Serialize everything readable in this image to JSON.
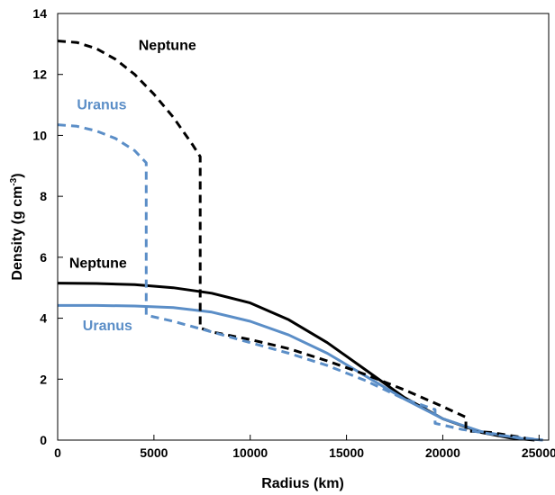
{
  "chart_data": {
    "type": "line",
    "title": "",
    "xlabel": "Radius (km)",
    "ylabel_main": "Density (g cm",
    "ylabel_sup": "-3",
    "ylabel_close": ")",
    "xlim": [
      0,
      25500
    ],
    "ylim": [
      0,
      14
    ],
    "xticks": [
      0,
      5000,
      10000,
      15000,
      20000,
      25000
    ],
    "yticks": [
      0,
      2,
      4,
      6,
      8,
      10,
      12,
      14
    ],
    "grid": false,
    "legend": "none",
    "colors": {
      "neptune": "#000000",
      "uranus": "#5b8ec7"
    },
    "series": [
      {
        "name": "Neptune",
        "style": "solid",
        "color": "#000000",
        "x": [
          0,
          2000,
          4000,
          6000,
          8000,
          10000,
          12000,
          14000,
          16000,
          18000,
          20000,
          22000,
          23500,
          24764
        ],
        "y": [
          5.15,
          5.14,
          5.1,
          5.0,
          4.82,
          4.5,
          3.95,
          3.2,
          2.3,
          1.4,
          0.7,
          0.25,
          0.07,
          0
        ]
      },
      {
        "name": "Uranus",
        "style": "solid",
        "color": "#5b8ec7",
        "x": [
          0,
          2000,
          4000,
          6000,
          8000,
          10000,
          12000,
          14000,
          16000,
          18000,
          20000,
          22000,
          24000,
          25200
        ],
        "y": [
          4.42,
          4.42,
          4.4,
          4.35,
          4.2,
          3.9,
          3.45,
          2.85,
          2.1,
          1.35,
          0.7,
          0.28,
          0.06,
          0
        ]
      },
      {
        "name": "Neptune",
        "style": "dashed",
        "color": "#000000",
        "x": [
          0,
          1000,
          2000,
          3000,
          4000,
          5000,
          6000,
          7000,
          7400,
          7400,
          8000,
          10000,
          12000,
          14000,
          16000,
          18000,
          20000,
          21200,
          21200,
          22500,
          24000,
          24764
        ],
        "y": [
          13.1,
          13.05,
          12.85,
          12.5,
          12.0,
          11.35,
          10.6,
          9.7,
          9.3,
          3.68,
          3.55,
          3.3,
          3.0,
          2.6,
          2.15,
          1.65,
          1.1,
          0.75,
          0.3,
          0.25,
          0.1,
          0
        ]
      },
      {
        "name": "Uranus",
        "style": "dashed",
        "color": "#5b8ec7",
        "x": [
          0,
          1000,
          2000,
          3000,
          4000,
          4600,
          4600,
          6000,
          8000,
          10000,
          12000,
          14000,
          16000,
          18000,
          19600,
          19600,
          21000,
          23000,
          25200
        ],
        "y": [
          10.35,
          10.3,
          10.15,
          9.9,
          9.5,
          9.1,
          4.1,
          3.9,
          3.55,
          3.2,
          2.85,
          2.45,
          1.95,
          1.35,
          1.0,
          0.55,
          0.35,
          0.15,
          0
        ]
      }
    ],
    "annotations": [
      {
        "text": "Neptune",
        "x": 4200,
        "y": 12.8,
        "color": "#000000"
      },
      {
        "text": "Uranus",
        "x": 1000,
        "y": 10.85,
        "color": "#5b8ec7"
      },
      {
        "text": "Neptune",
        "x": 600,
        "y": 5.65,
        "color": "#000000"
      },
      {
        "text": "Uranus",
        "x": 1300,
        "y": 3.6,
        "color": "#5b8ec7"
      }
    ]
  }
}
